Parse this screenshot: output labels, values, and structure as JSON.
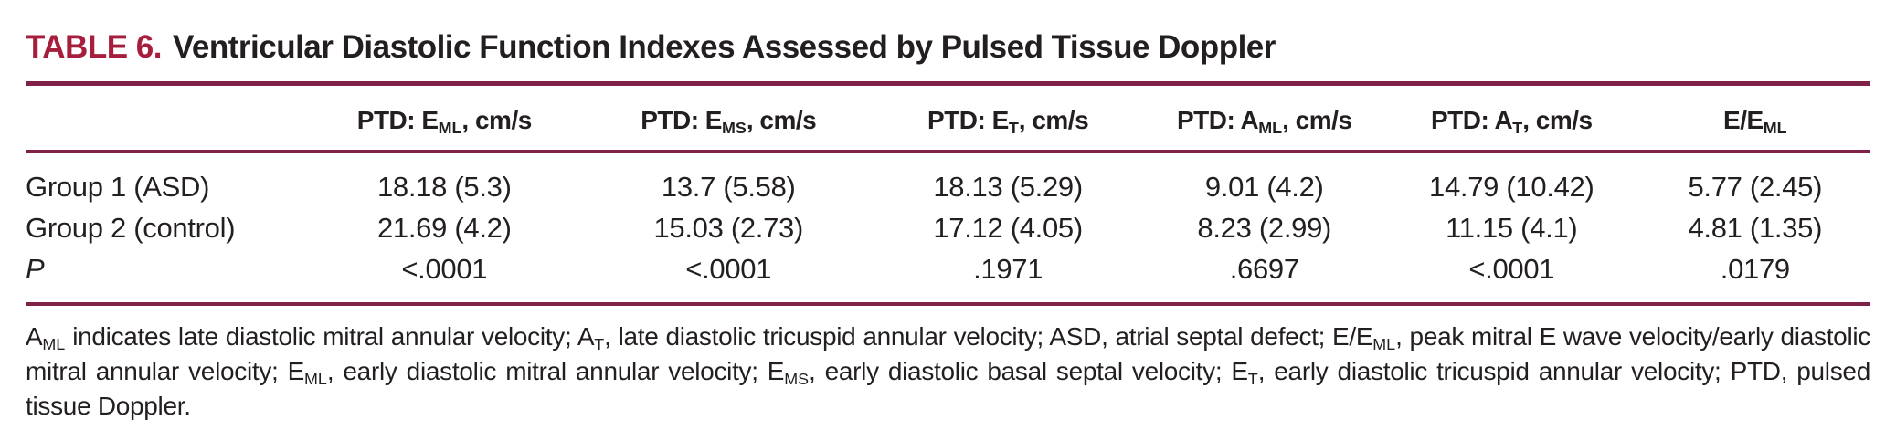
{
  "colors": {
    "accent_title": "#a61e3c",
    "rule": "#7e2248",
    "text": "#231f20"
  },
  "table": {
    "label": "TABLE 6.",
    "title": "Ventricular Diastolic Function Indexes Assessed by Pulsed Tissue Doppler",
    "columns": [
      "PTD: E~ML~, cm/s",
      "PTD: E~MS~, cm/s",
      "PTD: E~T~, cm/s",
      "PTD: A~ML~, cm/s",
      "PTD: A~T~, cm/s",
      "E/E~ML~"
    ],
    "rows": [
      {
        "label": "Group 1 (ASD)",
        "italic": false,
        "values": [
          "18.18 (5.3)",
          "13.7 (5.58)",
          "18.13 (5.29)",
          "9.01 (4.2)",
          "14.79 (10.42)",
          "5.77 (2.45)"
        ]
      },
      {
        "label": "Group 2 (control)",
        "italic": false,
        "values": [
          "21.69 (4.2)",
          "15.03 (2.73)",
          "17.12 (4.05)",
          "8.23 (2.99)",
          "11.15 (4.1)",
          "4.81 (1.35)"
        ]
      },
      {
        "label": "P",
        "italic": true,
        "values": [
          "<.0001",
          "<.0001",
          ".1971",
          ".6697",
          "<.0001",
          ".0179"
        ]
      }
    ],
    "footnote": "A~ML~ indicates late diastolic mitral annular velocity; A~T~, late diastolic tricuspid annular velocity; ASD, atrial septal defect; E/E~ML~, peak mitral E wave velocity/early diastolic mitral annular velocity; E~ML~, early diastolic mitral annular velocity; E~MS~, early diastolic basal septal velocity; E~T~, early diastolic tricuspid annular velocity; PTD, pulsed tissue Doppler."
  }
}
